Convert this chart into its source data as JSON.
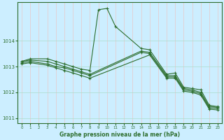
{
  "background_color": "#cceeff",
  "grid_color_major": "#aaddcc",
  "line_color": "#2d6e2d",
  "marker": "+",
  "title": "Graphe pression niveau de la mer (hPa)",
  "xlim": [
    -0.5,
    23.5
  ],
  "ylim": [
    1010.8,
    1015.5
  ],
  "yticks": [
    1011,
    1012,
    1013,
    1014
  ],
  "xticks": [
    0,
    1,
    2,
    3,
    4,
    5,
    6,
    7,
    8,
    9,
    10,
    11,
    12,
    13,
    14,
    15,
    16,
    17,
    18,
    19,
    20,
    21,
    22,
    23
  ],
  "series": [
    {
      "x": [
        0,
        1,
        3,
        4,
        5,
        6,
        7,
        8,
        9,
        10,
        11,
        14,
        15,
        17,
        18,
        19,
        20,
        21,
        22,
        23
      ],
      "y": [
        1013.2,
        1013.3,
        1013.3,
        1013.2,
        1013.1,
        1013.0,
        1012.9,
        1012.85,
        1015.2,
        1015.25,
        1014.55,
        1013.7,
        1013.65,
        1012.7,
        1012.75,
        1012.2,
        1012.15,
        1012.1,
        1011.5,
        1011.45
      ]
    },
    {
      "x": [
        0,
        1,
        3,
        4,
        5,
        6,
        7,
        8,
        14,
        15,
        17,
        18,
        19,
        20,
        21,
        22,
        23
      ],
      "y": [
        1013.2,
        1013.25,
        1013.2,
        1013.1,
        1013.0,
        1012.9,
        1012.8,
        1012.7,
        1013.6,
        1013.55,
        1012.65,
        1012.65,
        1012.15,
        1012.1,
        1012.0,
        1011.45,
        1011.42
      ]
    },
    {
      "x": [
        0,
        1,
        3,
        4,
        5,
        6,
        7,
        8,
        14,
        15,
        17,
        18,
        19,
        20,
        21,
        22,
        23
      ],
      "y": [
        1013.15,
        1013.2,
        1013.1,
        1013.0,
        1012.95,
        1012.85,
        1012.75,
        1012.65,
        1013.55,
        1013.5,
        1012.6,
        1012.6,
        1012.1,
        1012.05,
        1011.95,
        1011.4,
        1011.38
      ]
    },
    {
      "x": [
        0,
        1,
        3,
        4,
        5,
        6,
        7,
        8,
        15,
        17,
        18,
        19,
        20,
        21,
        22,
        23
      ],
      "y": [
        1013.1,
        1013.15,
        1013.05,
        1012.95,
        1012.85,
        1012.75,
        1012.65,
        1012.55,
        1013.45,
        1012.55,
        1012.55,
        1012.05,
        1012.0,
        1011.9,
        1011.35,
        1011.32
      ]
    }
  ]
}
